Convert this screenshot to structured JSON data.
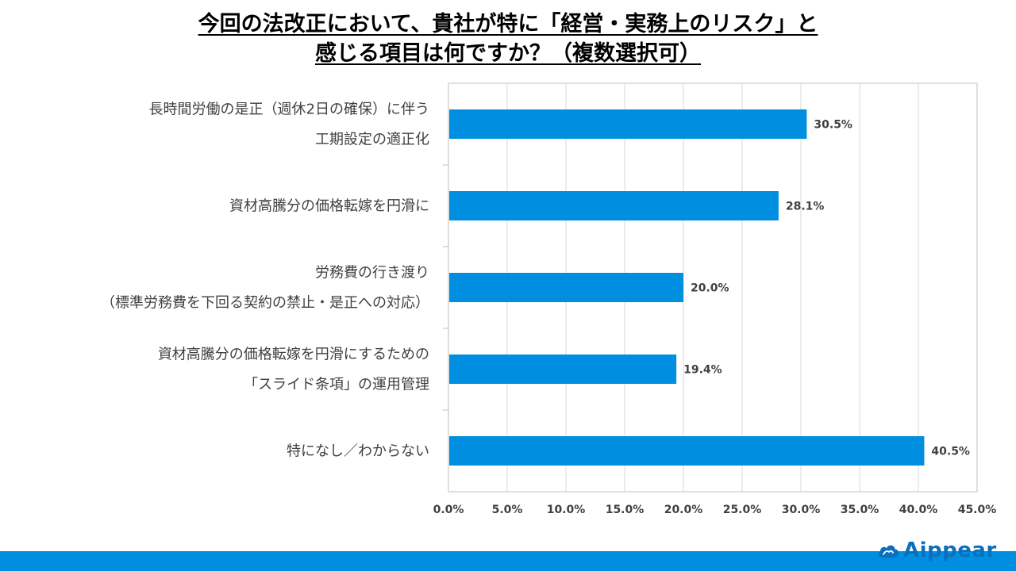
{
  "title": {
    "line1": "今回の法改正において、貴社が特に「経営・実務上のリスク」と",
    "line2": "感じる項目は何ですか？（複数選択可）"
  },
  "colors": {
    "bar": "#008FE0",
    "brand": "#0A6FBE",
    "grid": "#D9D9D9",
    "axis": "#BFBFBF"
  },
  "chart_data": {
    "type": "bar",
    "orientation": "horizontal",
    "categories": [
      [
        "長時間労働の是正（週休2日の確保）に伴う",
        "工期設定の適正化"
      ],
      [
        "資材高騰分の価格転嫁を円滑に"
      ],
      [
        "労務費の行き渡り",
        "（標準労務費を下回る契約の禁止・是正への対応）"
      ],
      [
        "資材高騰分の価格転嫁を円滑にするための",
        "「スライド条項」の運用管理"
      ],
      [
        "特になし／わからない"
      ]
    ],
    "values": [
      30.5,
      28.1,
      20.0,
      19.4,
      40.5
    ],
    "data_labels": [
      "30.5%",
      "28.1%",
      "20.0%",
      "19.4%",
      "40.5%"
    ],
    "xlim": [
      0,
      45
    ],
    "xticks": [
      0,
      5,
      10,
      15,
      20,
      25,
      30,
      35,
      40,
      45
    ],
    "xtick_labels": [
      "0.0%",
      "5.0%",
      "10.0%",
      "15.0%",
      "20.0%",
      "25.0%",
      "30.0%",
      "35.0%",
      "40.0%",
      "45.0%"
    ],
    "grid": true
  },
  "logo": {
    "text": "Aippear",
    "icon": "cloud-icon"
  }
}
